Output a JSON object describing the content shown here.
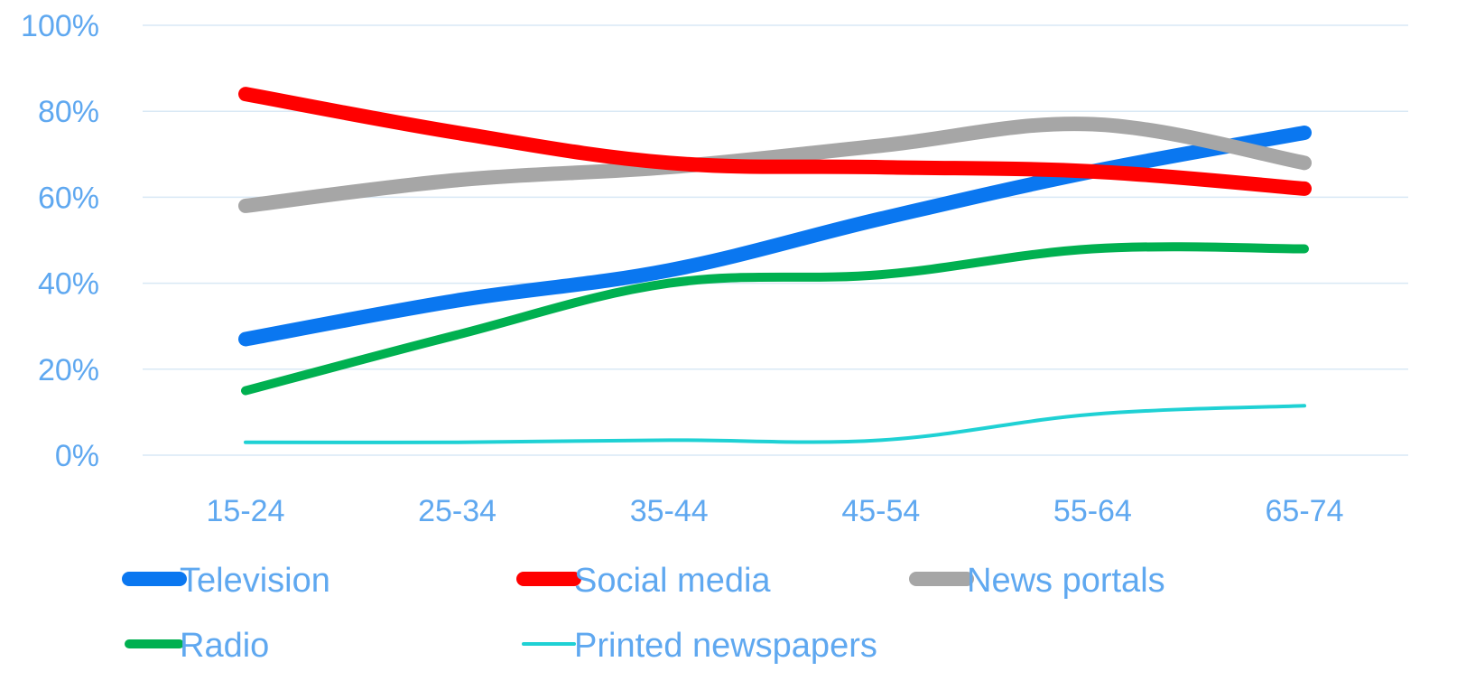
{
  "chart_data": {
    "type": "line",
    "categories": [
      "15-24",
      "25-34",
      "35-44",
      "45-54",
      "55-64",
      "65-74"
    ],
    "ylim": [
      0,
      100
    ],
    "y_ticks": [
      "0%",
      "20%",
      "40%",
      "60%",
      "80%",
      "100%"
    ],
    "grid": true,
    "legend_position": "bottom",
    "series": [
      {
        "name": "Television",
        "color": "#0a77f0",
        "values": [
          27,
          36,
          43,
          55,
          66,
          75
        ]
      },
      {
        "name": "Social media",
        "color": "#ff0000",
        "values": [
          84,
          75,
          68,
          67,
          66,
          62
        ]
      },
      {
        "name": "News portals",
        "color": "#a6a6a6",
        "values": [
          58,
          64,
          67,
          72,
          77,
          68
        ]
      },
      {
        "name": "Radio",
        "color": "#00b050",
        "values": [
          15,
          28,
          40,
          42,
          48,
          48
        ]
      },
      {
        "name": "Printed newspapers",
        "color": "#1fd1d4",
        "values": [
          3,
          3,
          3.5,
          3.5,
          9.5,
          11.5
        ]
      }
    ]
  }
}
